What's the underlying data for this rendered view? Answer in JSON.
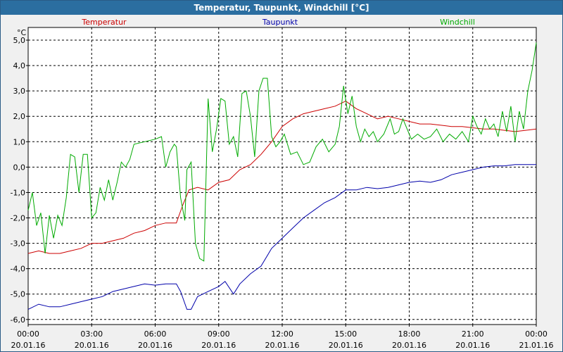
{
  "window": {
    "title": "Temperatur, Taupunkt, Windchill [°C]"
  },
  "chart_data": {
    "type": "line",
    "title": "Temperatur, Taupunkt, Windchill [°C]",
    "ylabel": "°C",
    "xlabel": "",
    "ylim": [
      -6.2,
      5.5
    ],
    "xlim": [
      0,
      24
    ],
    "grid": true,
    "legend_placement": "top",
    "y_ticks": [
      "5,0",
      "4,0",
      "3,0",
      "2,0",
      "1,0",
      "0,0",
      "-1,0",
      "-2,0",
      "-3,0",
      "-4,0",
      "-5,0",
      "-6,0"
    ],
    "y_tick_values": [
      5,
      4,
      3,
      2,
      1,
      0,
      -1,
      -2,
      -3,
      -4,
      -5,
      -6
    ],
    "x_ticks": [
      {
        "time": "00:00",
        "date": "20.01.16"
      },
      {
        "time": "03:00",
        "date": "20.01.16"
      },
      {
        "time": "06:00",
        "date": "20.01.16"
      },
      {
        "time": "09:00",
        "date": "20.01.16"
      },
      {
        "time": "12:00",
        "date": "20.01.16"
      },
      {
        "time": "15:00",
        "date": "20.01.16"
      },
      {
        "time": "18:00",
        "date": "20.01.16"
      },
      {
        "time": "21:00",
        "date": "20.01.16"
      },
      {
        "time": "00:00",
        "date": "21.01.16"
      }
    ],
    "x_tick_values": [
      0,
      3,
      6,
      9,
      12,
      15,
      18,
      21,
      24
    ],
    "series": [
      {
        "name": "Temperatur",
        "color": "#cc0000",
        "points": [
          [
            0,
            -3.4
          ],
          [
            0.5,
            -3.3
          ],
          [
            1,
            -3.4
          ],
          [
            1.5,
            -3.4
          ],
          [
            2,
            -3.3
          ],
          [
            2.5,
            -3.2
          ],
          [
            3,
            -3.0
          ],
          [
            3.5,
            -3.0
          ],
          [
            4,
            -2.9
          ],
          [
            4.5,
            -2.8
          ],
          [
            5,
            -2.6
          ],
          [
            5.5,
            -2.5
          ],
          [
            6,
            -2.3
          ],
          [
            6.5,
            -2.2
          ],
          [
            7,
            -2.2
          ],
          [
            7.3,
            -1.5
          ],
          [
            7.6,
            -0.9
          ],
          [
            8,
            -0.8
          ],
          [
            8.5,
            -0.9
          ],
          [
            9,
            -0.6
          ],
          [
            9.5,
            -0.5
          ],
          [
            10,
            -0.1
          ],
          [
            10.5,
            0.1
          ],
          [
            11,
            0.5
          ],
          [
            11.5,
            1.0
          ],
          [
            12,
            1.6
          ],
          [
            12.5,
            1.9
          ],
          [
            13,
            2.1
          ],
          [
            13.5,
            2.2
          ],
          [
            14,
            2.3
          ],
          [
            14.5,
            2.4
          ],
          [
            15,
            2.6
          ],
          [
            15.5,
            2.3
          ],
          [
            16,
            2.1
          ],
          [
            16.5,
            1.9
          ],
          [
            17,
            2.0
          ],
          [
            17.5,
            1.9
          ],
          [
            18,
            1.8
          ],
          [
            18.5,
            1.7
          ],
          [
            19,
            1.7
          ],
          [
            19.5,
            1.65
          ],
          [
            20,
            1.6
          ],
          [
            20.5,
            1.6
          ],
          [
            21,
            1.55
          ],
          [
            21.5,
            1.5
          ],
          [
            22,
            1.5
          ],
          [
            22.5,
            1.45
          ],
          [
            23,
            1.4
          ],
          [
            23.5,
            1.45
          ],
          [
            24,
            1.5
          ]
        ]
      },
      {
        "name": "Taupunkt",
        "color": "#0000aa",
        "points": [
          [
            0,
            -5.6
          ],
          [
            0.5,
            -5.4
          ],
          [
            1,
            -5.5
          ],
          [
            1.5,
            -5.5
          ],
          [
            2,
            -5.4
          ],
          [
            2.5,
            -5.3
          ],
          [
            3,
            -5.2
          ],
          [
            3.5,
            -5.1
          ],
          [
            4,
            -4.9
          ],
          [
            4.5,
            -4.8
          ],
          [
            5,
            -4.7
          ],
          [
            5.5,
            -4.6
          ],
          [
            6,
            -4.65
          ],
          [
            6.5,
            -4.6
          ],
          [
            7,
            -4.6
          ],
          [
            7.2,
            -4.9
          ],
          [
            7.5,
            -5.6
          ],
          [
            7.7,
            -5.6
          ],
          [
            8,
            -5.1
          ],
          [
            8.5,
            -4.9
          ],
          [
            9,
            -4.7
          ],
          [
            9.3,
            -4.5
          ],
          [
            9.7,
            -5.0
          ],
          [
            10,
            -4.6
          ],
          [
            10.5,
            -4.2
          ],
          [
            11,
            -3.9
          ],
          [
            11.5,
            -3.2
          ],
          [
            12,
            -2.8
          ],
          [
            12.5,
            -2.4
          ],
          [
            13,
            -2.0
          ],
          [
            13.5,
            -1.7
          ],
          [
            14,
            -1.4
          ],
          [
            14.5,
            -1.2
          ],
          [
            15,
            -0.9
          ],
          [
            15.5,
            -0.9
          ],
          [
            16,
            -0.8
          ],
          [
            16.5,
            -0.85
          ],
          [
            17,
            -0.8
          ],
          [
            17.5,
            -0.7
          ],
          [
            18,
            -0.6
          ],
          [
            18.5,
            -0.55
          ],
          [
            19,
            -0.6
          ],
          [
            19.5,
            -0.5
          ],
          [
            20,
            -0.3
          ],
          [
            20.5,
            -0.2
          ],
          [
            21,
            -0.1
          ],
          [
            21.5,
            0.0
          ],
          [
            22,
            0.05
          ],
          [
            22.5,
            0.05
          ],
          [
            23,
            0.1
          ],
          [
            23.5,
            0.1
          ],
          [
            24,
            0.1
          ]
        ]
      },
      {
        "name": "Windchill",
        "color": "#00aa00",
        "points": [
          [
            0,
            -1.7
          ],
          [
            0.2,
            -1.0
          ],
          [
            0.4,
            -2.3
          ],
          [
            0.6,
            -1.8
          ],
          [
            0.8,
            -3.4
          ],
          [
            1.0,
            -1.9
          ],
          [
            1.2,
            -2.8
          ],
          [
            1.4,
            -1.9
          ],
          [
            1.6,
            -2.3
          ],
          [
            1.8,
            -1.2
          ],
          [
            2.0,
            0.5
          ],
          [
            2.2,
            0.4
          ],
          [
            2.4,
            -1.0
          ],
          [
            2.6,
            0.5
          ],
          [
            2.8,
            0.5
          ],
          [
            3.0,
            -2.0
          ],
          [
            3.2,
            -1.8
          ],
          [
            3.4,
            -0.8
          ],
          [
            3.6,
            -1.3
          ],
          [
            3.8,
            -0.5
          ],
          [
            4.0,
            -1.3
          ],
          [
            4.2,
            -0.6
          ],
          [
            4.4,
            0.2
          ],
          [
            4.6,
            0.0
          ],
          [
            4.8,
            0.3
          ],
          [
            5.0,
            0.9
          ],
          [
            5.5,
            1.0
          ],
          [
            6.0,
            1.1
          ],
          [
            6.3,
            1.2
          ],
          [
            6.5,
            0.0
          ],
          [
            6.7,
            0.6
          ],
          [
            6.9,
            0.9
          ],
          [
            7.0,
            0.8
          ],
          [
            7.2,
            -1.2
          ],
          [
            7.4,
            -2.1
          ],
          [
            7.5,
            -0.1
          ],
          [
            7.7,
            0.2
          ],
          [
            7.9,
            -3.0
          ],
          [
            8.1,
            -3.6
          ],
          [
            8.3,
            -3.7
          ],
          [
            8.5,
            2.7
          ],
          [
            8.7,
            0.6
          ],
          [
            8.9,
            1.5
          ],
          [
            9.1,
            2.7
          ],
          [
            9.3,
            2.6
          ],
          [
            9.5,
            0.9
          ],
          [
            9.7,
            1.2
          ],
          [
            9.9,
            0.4
          ],
          [
            10.1,
            2.9
          ],
          [
            10.3,
            3.0
          ],
          [
            10.5,
            2.0
          ],
          [
            10.7,
            0.4
          ],
          [
            10.9,
            3.0
          ],
          [
            11.1,
            3.5
          ],
          [
            11.3,
            3.5
          ],
          [
            11.5,
            1.2
          ],
          [
            11.7,
            0.8
          ],
          [
            11.9,
            1.0
          ],
          [
            12.1,
            1.3
          ],
          [
            12.4,
            0.5
          ],
          [
            12.7,
            0.6
          ],
          [
            13.0,
            0.1
          ],
          [
            13.3,
            0.2
          ],
          [
            13.6,
            0.8
          ],
          [
            13.9,
            1.1
          ],
          [
            14.2,
            0.6
          ],
          [
            14.5,
            0.9
          ],
          [
            14.7,
            1.6
          ],
          [
            14.9,
            3.2
          ],
          [
            15.1,
            2.1
          ],
          [
            15.3,
            2.8
          ],
          [
            15.5,
            1.6
          ],
          [
            15.7,
            1.0
          ],
          [
            15.9,
            1.5
          ],
          [
            16.1,
            1.2
          ],
          [
            16.3,
            1.4
          ],
          [
            16.5,
            1.0
          ],
          [
            16.8,
            1.3
          ],
          [
            17.1,
            1.9
          ],
          [
            17.3,
            1.3
          ],
          [
            17.5,
            1.4
          ],
          [
            17.7,
            1.9
          ],
          [
            17.9,
            1.5
          ],
          [
            18.1,
            1.1
          ],
          [
            18.4,
            1.3
          ],
          [
            18.7,
            1.1
          ],
          [
            19.0,
            1.2
          ],
          [
            19.3,
            1.5
          ],
          [
            19.6,
            1.0
          ],
          [
            19.9,
            1.3
          ],
          [
            20.2,
            1.1
          ],
          [
            20.5,
            1.4
          ],
          [
            20.8,
            1.0
          ],
          [
            21.0,
            2.0
          ],
          [
            21.2,
            1.6
          ],
          [
            21.4,
            1.3
          ],
          [
            21.6,
            1.9
          ],
          [
            21.8,
            1.5
          ],
          [
            22.0,
            1.7
          ],
          [
            22.2,
            1.2
          ],
          [
            22.4,
            2.2
          ],
          [
            22.6,
            1.4
          ],
          [
            22.8,
            2.4
          ],
          [
            23.0,
            1.0
          ],
          [
            23.2,
            2.2
          ],
          [
            23.4,
            1.5
          ],
          [
            23.6,
            3.0
          ],
          [
            23.8,
            3.8
          ],
          [
            24.0,
            4.9
          ]
        ]
      }
    ]
  }
}
